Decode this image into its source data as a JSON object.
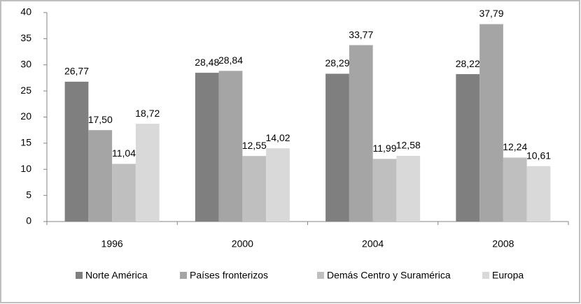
{
  "chart_data": {
    "type": "bar",
    "categories": [
      "1996",
      "2000",
      "2004",
      "2008"
    ],
    "series": [
      {
        "name": "Norte América",
        "color": "#7f7f7f",
        "values": [
          26.77,
          28.48,
          28.29,
          28.22
        ],
        "value_labels": [
          "26,77",
          "28,48",
          "28,29",
          "28,22"
        ]
      },
      {
        "name": "Países fronterizos",
        "color": "#a5a5a5",
        "values": [
          17.5,
          28.84,
          33.77,
          37.79
        ],
        "value_labels": [
          "17,50",
          "28,84",
          "33,77",
          "37,79"
        ]
      },
      {
        "name": "Demás Centro y Suramérica",
        "color": "#bfbfbf",
        "values": [
          11.04,
          12.55,
          11.99,
          12.24
        ],
        "value_labels": [
          "11,04",
          "12,55",
          "11,99",
          "12,24"
        ]
      },
      {
        "name": "Europa",
        "color": "#d9d9d9",
        "values": [
          18.72,
          14.02,
          12.58,
          10.61
        ],
        "value_labels": [
          "18,72",
          "14,02",
          "12,58",
          "10,61"
        ]
      }
    ],
    "ylim": [
      0,
      40
    ],
    "yticks": [
      0,
      5,
      10,
      15,
      20,
      25,
      30,
      35,
      40
    ],
    "grid": false,
    "legend": "bottom"
  }
}
